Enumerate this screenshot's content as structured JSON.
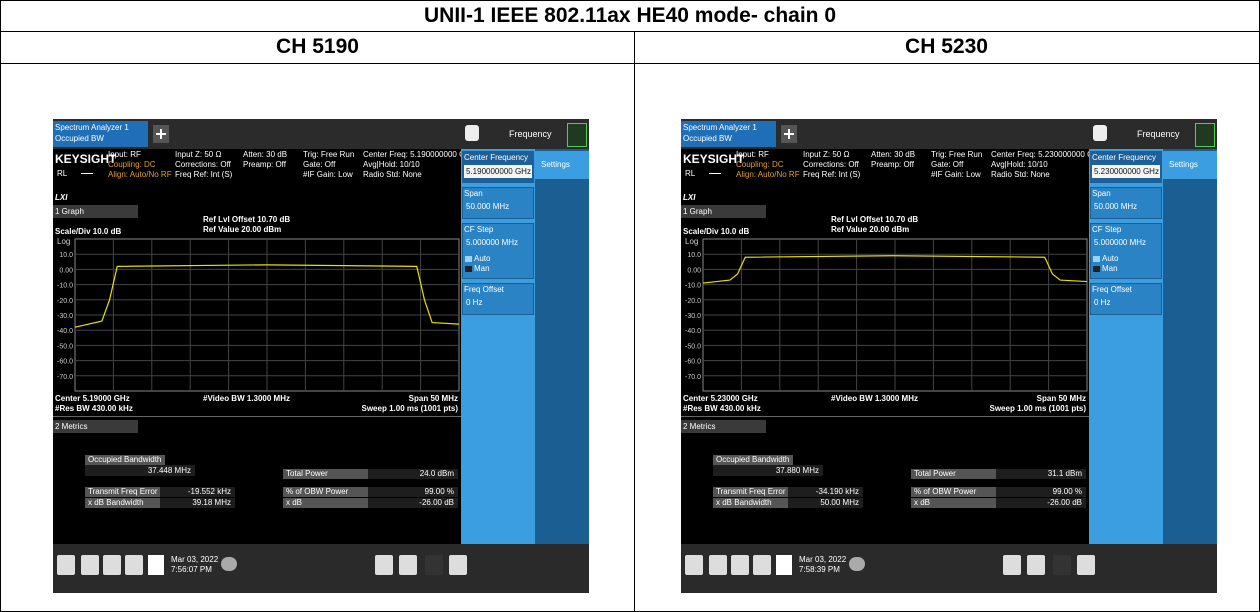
{
  "title": "UNII-1 IEEE 802.11ax HE40 mode- chain 0",
  "panels": [
    {
      "heading": "CH 5190",
      "tab1": "Spectrum Analyzer 1",
      "tab2": "Occupied BW",
      "menu": "Frequency",
      "brand": "KEYSIGHT",
      "rl": "RL",
      "info": [
        [
          "Input: RF",
          "Coupling: DC",
          "Align: Auto/No RF"
        ],
        [
          "Input Z: 50 Ω",
          "Corrections: Off",
          "Freq Ref: Int (S)"
        ],
        [
          "Atten: 30 dB",
          "Preamp: Off"
        ],
        [
          "Trig: Free Run",
          "Gate: Off",
          "#IF Gain: Low"
        ],
        [
          "Center Freq: 5.190000000 GHz",
          "Avg|Hold: 10/10",
          "Radio Std: None"
        ]
      ],
      "lxi": "LXI",
      "graph_menu": "1 Graph",
      "scale": "Scale/Div 10.0 dB",
      "log": "Log",
      "ref_offset": "Ref Lvl Offset 10.70 dB",
      "ref_value": "Ref Value 20.00 dBm",
      "center": "Center 5.19000 GHz",
      "vbw": "#Video BW 1.3000 MHz",
      "span": "Span 50 MHz",
      "rbw": "#Res BW 430.00 kHz",
      "sweep": "Sweep 1.00 ms (1001 pts)",
      "metrics_menu": "2 Metrics",
      "obw_label": "Occupied Bandwidth",
      "obw_value": "37.448 MHz",
      "total_power_label": "Total Power",
      "total_power_value": "24.0 dBm",
      "tfe_label": "Transmit Freq Error",
      "tfe_value": "-19.552 kHz",
      "xdbbw_label": "x dB Bandwidth",
      "xdbbw_value": "39.18 MHz",
      "obwpct_label": "% of OBW Power",
      "obwpct_value": "99.00 %",
      "xdb_label": "x dB",
      "xdb_value": "-26.00 dB",
      "date": "Mar 03, 2022",
      "time": "7:56:07 PM",
      "side": {
        "cf_label": "Center Frequency",
        "cf_value": "5.190000000 GHz",
        "settings": "Settings",
        "span_label": "Span",
        "span_value": "50.000 MHz",
        "step_label": "CF Step",
        "step_value": "5.000000 MHz",
        "auto": "Auto",
        "man": "Man",
        "offset_label": "Freq Offset",
        "offset_value": "0 Hz"
      },
      "chart": {
        "type": "line",
        "xlim": [
          5.165,
          5.215
        ],
        "ylim": [
          -80,
          20
        ],
        "yticks": [
          {
            "value": 10,
            "label": "10.0"
          },
          {
            "value": 0,
            "label": "0.00"
          },
          {
            "value": -10,
            "label": "-10.0"
          },
          {
            "value": -20,
            "label": "-20.0"
          },
          {
            "value": -30,
            "label": "-30.0"
          },
          {
            "value": -40,
            "label": "-40.0"
          },
          {
            "value": -50,
            "label": "-50.0"
          },
          {
            "value": -60,
            "label": "-60.0"
          },
          {
            "value": -70,
            "label": "-70.0"
          }
        ],
        "trace": {
          "color": "#e8e000",
          "x": [
            5.165,
            5.1685,
            5.1695,
            5.1705,
            5.19,
            5.2095,
            5.2105,
            5.2115,
            5.215
          ],
          "values": [
            -38,
            -34,
            -20,
            2,
            3,
            2,
            -20,
            -35,
            -36
          ]
        }
      }
    },
    {
      "heading": "CH 5230",
      "tab1": "Spectrum Analyzer 1",
      "tab2": "Occupied BW",
      "menu": "Frequency",
      "brand": "KEYSIGHT",
      "rl": "RL",
      "info": [
        [
          "Input: RF",
          "Coupling: DC",
          "Align: Auto/No RF"
        ],
        [
          "Input Z: 50 Ω",
          "Corrections: Off",
          "Freq Ref: Int (S)"
        ],
        [
          "Atten: 30 dB",
          "Preamp: Off"
        ],
        [
          "Trig: Free Run",
          "Gate: Off",
          "#IF Gain: Low"
        ],
        [
          "Center Freq: 5.230000000 GHz",
          "Avg|Hold: 10/10",
          "Radio Std: None"
        ]
      ],
      "lxi": "LXI",
      "graph_menu": "1 Graph",
      "scale": "Scale/Div 10.0 dB",
      "log": "Log",
      "ref_offset": "Ref Lvl Offset 10.70 dB",
      "ref_value": "Ref Value 20.00 dBm",
      "center": "Center 5.23000 GHz",
      "vbw": "#Video BW 1.3000 MHz",
      "span": "Span 50 MHz",
      "rbw": "#Res BW 430.00 kHz",
      "sweep": "Sweep 1.00 ms (1001 pts)",
      "metrics_menu": "2 Metrics",
      "obw_label": "Occupied Bandwidth",
      "obw_value": "37.880 MHz",
      "total_power_label": "Total Power",
      "total_power_value": "31.1 dBm",
      "tfe_label": "Transmit Freq Error",
      "tfe_value": "-34.190 kHz",
      "xdbbw_label": "x dB Bandwidth",
      "xdbbw_value": "50.00 MHz",
      "obwpct_label": "% of OBW Power",
      "obwpct_value": "99.00 %",
      "xdb_label": "x dB",
      "xdb_value": "-26.00 dB",
      "date": "Mar 03, 2022",
      "time": "7:58:39 PM",
      "side": {
        "cf_label": "Center Frequency",
        "cf_value": "5.230000000 GHz",
        "settings": "Settings",
        "span_label": "Span",
        "span_value": "50.000 MHz",
        "step_label": "CF Step",
        "step_value": "5.000000 MHz",
        "auto": "Auto",
        "man": "Man",
        "offset_label": "Freq Offset",
        "offset_value": "0 Hz"
      },
      "chart": {
        "type": "line",
        "xlim": [
          5.205,
          5.255
        ],
        "ylim": [
          -80,
          20
        ],
        "yticks": [
          {
            "value": 10,
            "label": "10.0"
          },
          {
            "value": 0,
            "label": "0.00"
          },
          {
            "value": -10,
            "label": "-10.0"
          },
          {
            "value": -20,
            "label": "-20.0"
          },
          {
            "value": -30,
            "label": "-30.0"
          },
          {
            "value": -40,
            "label": "-40.0"
          },
          {
            "value": -50,
            "label": "-50.0"
          },
          {
            "value": -60,
            "label": "-60.0"
          },
          {
            "value": -70,
            "label": "-70.0"
          }
        ],
        "trace": {
          "color": "#e8e000",
          "x": [
            5.205,
            5.2085,
            5.2095,
            5.2105,
            5.23,
            5.2495,
            5.2505,
            5.2515,
            5.255
          ],
          "values": [
            -9,
            -7,
            -3,
            8,
            9,
            8,
            -3,
            -7,
            -8
          ]
        }
      }
    }
  ]
}
